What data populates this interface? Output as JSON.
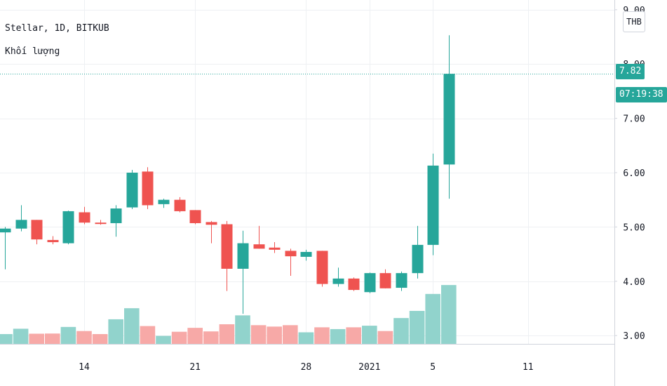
{
  "legend": {
    "symbol_line": "Stellar, 1D, BITKUB",
    "volume_label": "Khối lượng"
  },
  "price_axis": {
    "currency_badge": "THB",
    "last_price_label": "7.82",
    "countdown_label": "07:19:38"
  },
  "colors": {
    "up": "#26a69a",
    "down": "#ef5350",
    "up_volume": "#91d3cc",
    "down_volume": "#f7a9a7",
    "grid": "#eef0f3",
    "axis_text": "#131722",
    "last_price_line": "#26a69a"
  },
  "chart_data": {
    "type": "candlestick",
    "symbol": "Stellar",
    "interval": "1D",
    "exchange": "BITKUB",
    "currency": "THB",
    "ylim": [
      2.95,
      9.05
    ],
    "y_ticks": [
      "3.00",
      "4.00",
      "5.00",
      "6.00",
      "7.00",
      "8.00",
      "9.00"
    ],
    "y_tick_values": [
      3,
      4,
      5,
      6,
      7,
      8,
      9
    ],
    "x_ticks": [
      {
        "label": "14",
        "index": 5
      },
      {
        "label": "21",
        "index": 12
      },
      {
        "label": "28",
        "index": 19
      },
      {
        "label": "2021",
        "index": 23
      },
      {
        "label": "5",
        "index": 27
      },
      {
        "label": "11",
        "index": 33
      }
    ],
    "x_start_index": 0,
    "x_end_index": 38.7,
    "last_price": 7.82,
    "countdown": "07:19:38",
    "volume_max": 4.8,
    "candles": [
      {
        "o": 4.9,
        "h": 5.0,
        "l": 4.22,
        "c": 4.97,
        "v": 0.55
      },
      {
        "o": 4.97,
        "h": 5.4,
        "l": 4.92,
        "c": 5.13,
        "v": 0.85
      },
      {
        "o": 5.13,
        "h": 5.13,
        "l": 4.68,
        "c": 4.77,
        "v": 0.57
      },
      {
        "o": 4.76,
        "h": 4.83,
        "l": 4.68,
        "c": 4.72,
        "v": 0.58
      },
      {
        "o": 4.7,
        "h": 5.3,
        "l": 4.68,
        "c": 5.29,
        "v": 0.95
      },
      {
        "o": 5.27,
        "h": 5.37,
        "l": 5.05,
        "c": 5.08,
        "v": 0.72
      },
      {
        "o": 5.08,
        "h": 5.13,
        "l": 5.04,
        "c": 5.06,
        "v": 0.55
      },
      {
        "o": 5.07,
        "h": 5.4,
        "l": 4.82,
        "c": 5.34,
        "v": 1.38
      },
      {
        "o": 5.36,
        "h": 6.05,
        "l": 5.33,
        "c": 6.0,
        "v": 2.0
      },
      {
        "o": 6.02,
        "h": 6.1,
        "l": 5.33,
        "c": 5.4,
        "v": 1.0
      },
      {
        "o": 5.42,
        "h": 5.52,
        "l": 5.35,
        "c": 5.5,
        "v": 0.45
      },
      {
        "o": 5.5,
        "h": 5.55,
        "l": 5.27,
        "c": 5.29,
        "v": 0.68
      },
      {
        "o": 5.31,
        "h": 5.31,
        "l": 5.05,
        "c": 5.07,
        "v": 0.9
      },
      {
        "o": 5.09,
        "h": 5.11,
        "l": 4.7,
        "c": 5.04,
        "v": 0.7
      },
      {
        "o": 5.05,
        "h": 5.11,
        "l": 3.82,
        "c": 4.23,
        "v": 1.1
      },
      {
        "o": 4.23,
        "h": 4.93,
        "l": 3.4,
        "c": 4.7,
        "v": 1.6
      },
      {
        "o": 4.68,
        "h": 5.02,
        "l": 4.6,
        "c": 4.6,
        "v": 1.05
      },
      {
        "o": 4.62,
        "h": 4.72,
        "l": 4.52,
        "c": 4.58,
        "v": 0.97
      },
      {
        "o": 4.56,
        "h": 4.6,
        "l": 4.1,
        "c": 4.46,
        "v": 1.05
      },
      {
        "o": 4.45,
        "h": 4.58,
        "l": 4.38,
        "c": 4.54,
        "v": 0.65
      },
      {
        "o": 4.56,
        "h": 4.56,
        "l": 3.9,
        "c": 3.95,
        "v": 0.93
      },
      {
        "o": 3.95,
        "h": 4.25,
        "l": 3.9,
        "c": 4.05,
        "v": 0.83
      },
      {
        "o": 4.05,
        "h": 4.07,
        "l": 3.82,
        "c": 3.84,
        "v": 0.93
      },
      {
        "o": 3.8,
        "h": 4.16,
        "l": 3.78,
        "c": 4.15,
        "v": 1.02
      },
      {
        "o": 4.15,
        "h": 4.22,
        "l": 3.87,
        "c": 3.87,
        "v": 0.72
      },
      {
        "o": 3.88,
        "h": 4.18,
        "l": 3.82,
        "c": 4.15,
        "v": 1.45
      },
      {
        "o": 4.15,
        "h": 5.02,
        "l": 4.05,
        "c": 4.67,
        "v": 1.85
      },
      {
        "o": 4.67,
        "h": 6.35,
        "l": 4.48,
        "c": 6.13,
        "v": 2.8
      },
      {
        "o": 6.15,
        "h": 8.53,
        "l": 5.52,
        "c": 7.82,
        "v": 3.3
      }
    ]
  }
}
